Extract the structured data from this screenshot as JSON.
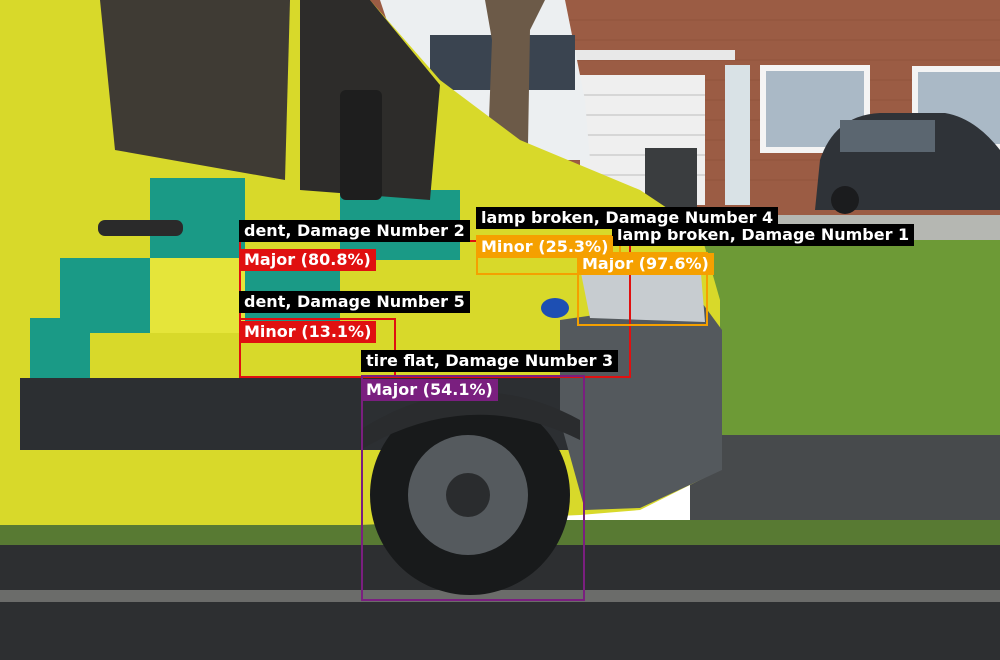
{
  "detections": [
    {
      "title": "dent, Damage Number 2",
      "severity": "Major (80.8%)",
      "color": "#e01010"
    },
    {
      "title": "dent, Damage Number 5",
      "severity": "Minor (13.1%)",
      "color": "#e01010"
    },
    {
      "title": "tire flat, Damage Number 3",
      "severity": "Major (54.1%)",
      "color": "#7a1f7f"
    },
    {
      "title": "lamp broken, Damage Number 4",
      "severity": "Minor (25.3%)",
      "color": "#f5a000"
    },
    {
      "title": "lamp broken, Damage Number 1",
      "severity": "Major (97.6%)",
      "color": "#f5a000"
    }
  ]
}
